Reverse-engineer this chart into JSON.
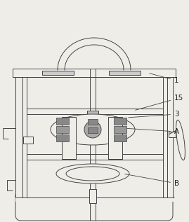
{
  "bg_color": "#eeede8",
  "line_color": "#444444",
  "lw": 0.7,
  "fig_w": 2.69,
  "fig_h": 3.17
}
